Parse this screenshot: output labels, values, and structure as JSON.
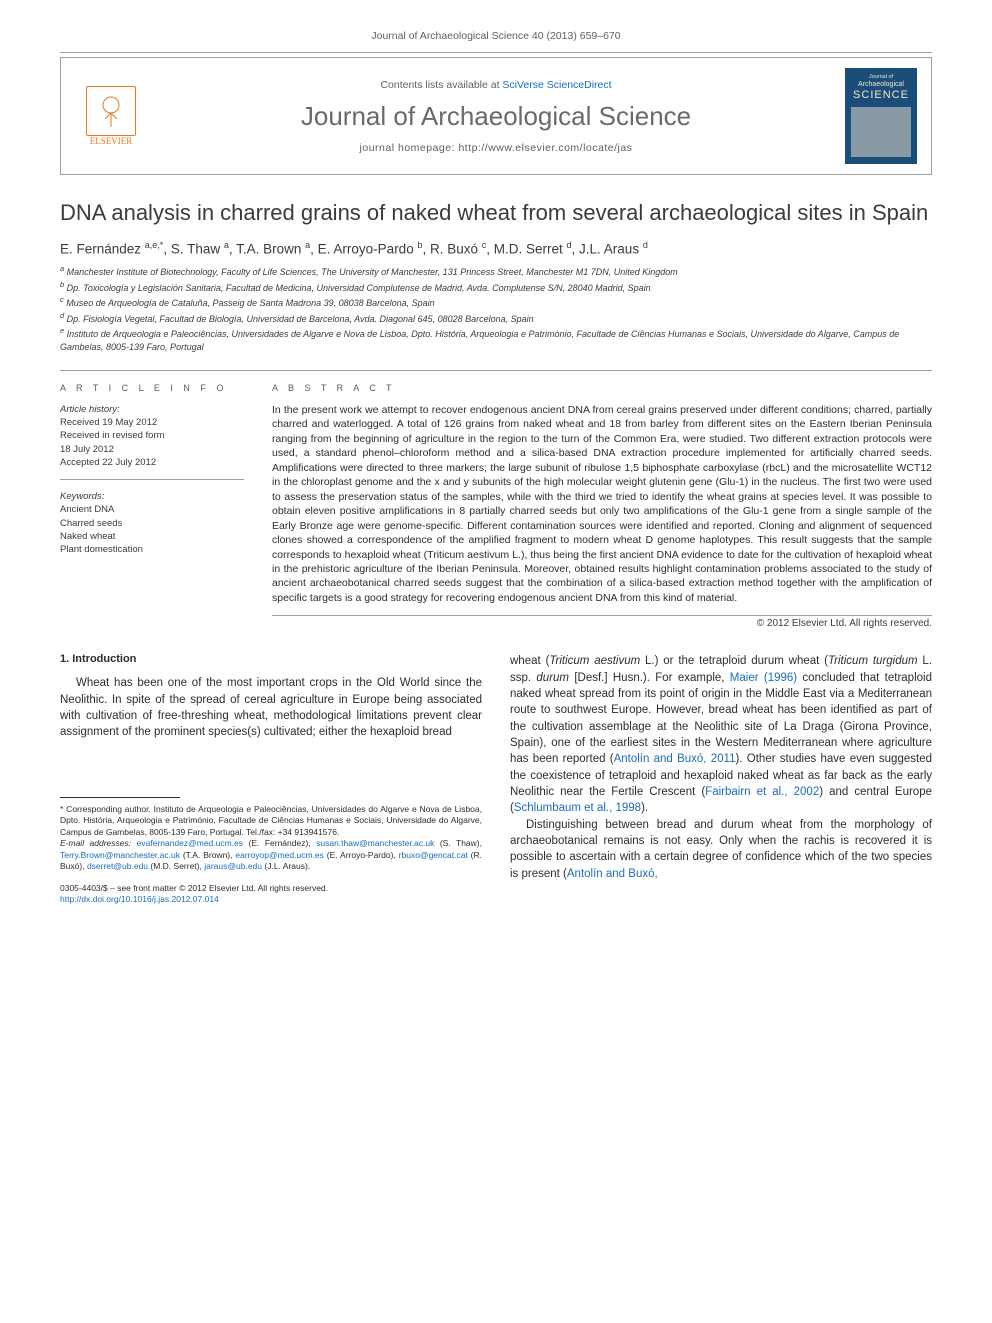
{
  "header": {
    "citation": "Journal of Archaeological Science 40 (2013) 659–670",
    "contents_prefix": "Contents lists available at ",
    "contents_link": "SciVerse ScienceDirect",
    "journal_name": "Journal of Archaeological Science",
    "homepage_label": "journal homepage: ",
    "homepage_url": "http://www.elsevier.com/locate/jas",
    "elsevier_label": "ELSEVIER",
    "cover_line1": "Journal of",
    "cover_line2": "Archaeological",
    "cover_line3": "SCIENCE"
  },
  "article": {
    "title": "DNA analysis in charred grains of naked wheat from several archaeological sites in Spain",
    "authors_html": "E. Fernández <sup>a,e,*</sup>, S. Thaw <sup>a</sup>, T.A. Brown <sup>a</sup>, E. Arroyo-Pardo <sup>b</sup>, R. Buxó <sup>c</sup>, M.D. Serret <sup>d</sup>, J.L. Araus <sup>d</sup>",
    "affiliations": [
      "a Manchester Institute of Biotechnology, Faculty of Life Sciences, The University of Manchester, 131 Princess Street, Manchester M1 7DN, United Kingdom",
      "b Dp. Toxicología y Legislación Sanitaria, Facultad de Medicina, Universidad Complutense de Madrid, Avda. Complutense S/N, 28040 Madrid, Spain",
      "c Museo de Arqueología de Cataluña, Passeig de Santa Madrona 39, 08038 Barcelona, Spain",
      "d Dp. Fisiología Vegetal, Facultad de Biología, Universidad de Barcelona, Avda. Diagonal 645, 08028 Barcelona, Spain",
      "e Instituto de Arqueologia e Paleociências, Universidades de Algarve e Nova de Lisboa, Dpto. História, Arqueologia e Património, Facultade de Ciências Humanas e Sociais, Universidade do Algarve, Campus de Gambelas, 8005-139 Faro, Portugal"
    ]
  },
  "info": {
    "label": "A R T I C L E   I N F O",
    "history_label": "Article history:",
    "received": "Received 19 May 2012",
    "revised": "Received in revised form",
    "revised_date": "18 July 2012",
    "accepted": "Accepted 22 July 2012",
    "keywords_label": "Keywords:",
    "keywords": [
      "Ancient DNA",
      "Charred seeds",
      "Naked wheat",
      "Plant domestication"
    ]
  },
  "abstract": {
    "label": "A B S T R A C T",
    "text": "In the present work we attempt to recover endogenous ancient DNA from cereal grains preserved under different conditions; charred, partially charred and waterlogged. A total of 126 grains from naked wheat and 18 from barley from different sites on the Eastern Iberian Peninsula ranging from the beginning of agriculture in the region to the turn of the Common Era, were studied. Two different extraction protocols were used, a standard phenol–chloroform method and a silica-based DNA extraction procedure implemented for artificially charred seeds. Amplifications were directed to three markers; the large subunit of ribulose 1,5 biphosphate carboxylase (rbcL) and the microsatellite WCT12 in the chloroplast genome and the x and y subunits of the high molecular weight glutenin gene (Glu-1) in the nucleus. The first two were used to assess the preservation status of the samples, while with the third we tried to identify the wheat grains at species level. It was possible to obtain eleven positive amplifications in 8 partially charred seeds but only two amplifications of the Glu-1 gene from a single sample of the Early Bronze age were genome-specific. Different contamination sources were identified and reported. Cloning and alignment of sequenced clones showed a correspondence of the amplified fragment to modern wheat D genome haplotypes. This result suggests that the sample corresponds to hexaploid wheat (Triticum aestivum L.), thus being the first ancient DNA evidence to date for the cultivation of hexaploid wheat in the prehistoric agriculture of the Iberian Peninsula. Moreover, obtained results highlight contamination problems associated to the study of ancient archaeobotanical charred seeds suggest that the combination of a silica-based extraction method together with the amplification of specific targets is a good strategy for recovering endogenous ancient DNA from this kind of material.",
    "copyright": "© 2012 Elsevier Ltd. All rights reserved."
  },
  "body": {
    "section_heading": "1. Introduction",
    "col1_p1": "Wheat has been one of the most important crops in the Old World since the Neolithic. In spite of the spread of cereal agriculture in Europe being associated with cultivation of free-threshing wheat, methodological limitations prevent clear assignment of the prominent species(s) cultivated; either the hexaploid bread",
    "col2_p1_a": "wheat (",
    "col2_p1_b": "Triticum aestivum",
    "col2_p1_c": " L.) or the tetraploid durum wheat (",
    "col2_p1_d": "Triticum turgidum",
    "col2_p1_e": " L. ssp. ",
    "col2_p1_f": "durum",
    "col2_p1_g": " [Desf.] Husn.). For example, ",
    "col2_p1_cite1": "Maier (1996)",
    "col2_p1_h": " concluded that tetraploid naked wheat spread from its point of origin in the Middle East via a Mediterranean route to southwest Europe. However, bread wheat has been identified as part of the cultivation assemblage at the Neolithic site of La Draga (Girona Province, Spain), one of the earliest sites in the Western Mediterranean where agriculture has been reported (",
    "col2_p1_cite2": "Antolín and Buxó, 2011",
    "col2_p1_i": "). Other studies have even suggested the coexistence of tetraploid and hexaploid naked wheat as far back as the early Neolithic near the Fertile Crescent (",
    "col2_p1_cite3": "Fairbairn et al., 2002",
    "col2_p1_j": ") and central Europe (",
    "col2_p1_cite4": "Schlumbaum et al., 1998",
    "col2_p1_k": ").",
    "col2_p2_a": "Distinguishing between bread and durum wheat from the morphology of archaeobotanical remains is not easy. Only when the rachis is recovered it is possible to ascertain with a certain degree of confidence which of the two species is present (",
    "col2_p2_cite1": "Antolín and Buxó,"
  },
  "footnote": {
    "corr_label": "* Corresponding author.",
    "corr_text": " Instituto de Arqueologia e Paleociências, Universidades do Algarve e Nova de Lisboa, Dpto. História, Arqueologia e Património, Facultade de Ciências Humanas e Sociais, Universidade do Algarve, Campus de Gambelas, 8005-139 Faro, Portugal. Tel./fax: +34 913941576.",
    "email_label": "E-mail addresses:",
    "emails": [
      {
        "addr": "evafernandez@med.ucm.es",
        "who": " (E. Fernández), "
      },
      {
        "addr": "susan.thaw@manchester.ac.uk",
        "who": " (S. Thaw), "
      },
      {
        "addr": "Terry.Brown@manchester.ac.uk",
        "who": " (T.A. Brown), "
      },
      {
        "addr": "earroyop@med.ucm.es",
        "who": " (E. Arroyo-Pardo), "
      },
      {
        "addr": "rbuxo@gencat.cat",
        "who": " (R. Buxó), "
      },
      {
        "addr": "dserret@ub.edu",
        "who": " (M.D. Serret), "
      },
      {
        "addr": "jaraus@ub.edu",
        "who": " (J.L. Araus)."
      }
    ]
  },
  "doi": {
    "line1": "0305-4403/$ – see front matter © 2012 Elsevier Ltd. All rights reserved.",
    "line2_url": "http://dx.doi.org/10.1016/j.jas.2012.07.014"
  },
  "colors": {
    "link": "#1a6db8",
    "text": "#2d2d2d",
    "muted": "#606060",
    "elsevier": "#e67a1f",
    "cover_bg": "#1a4d7a"
  }
}
